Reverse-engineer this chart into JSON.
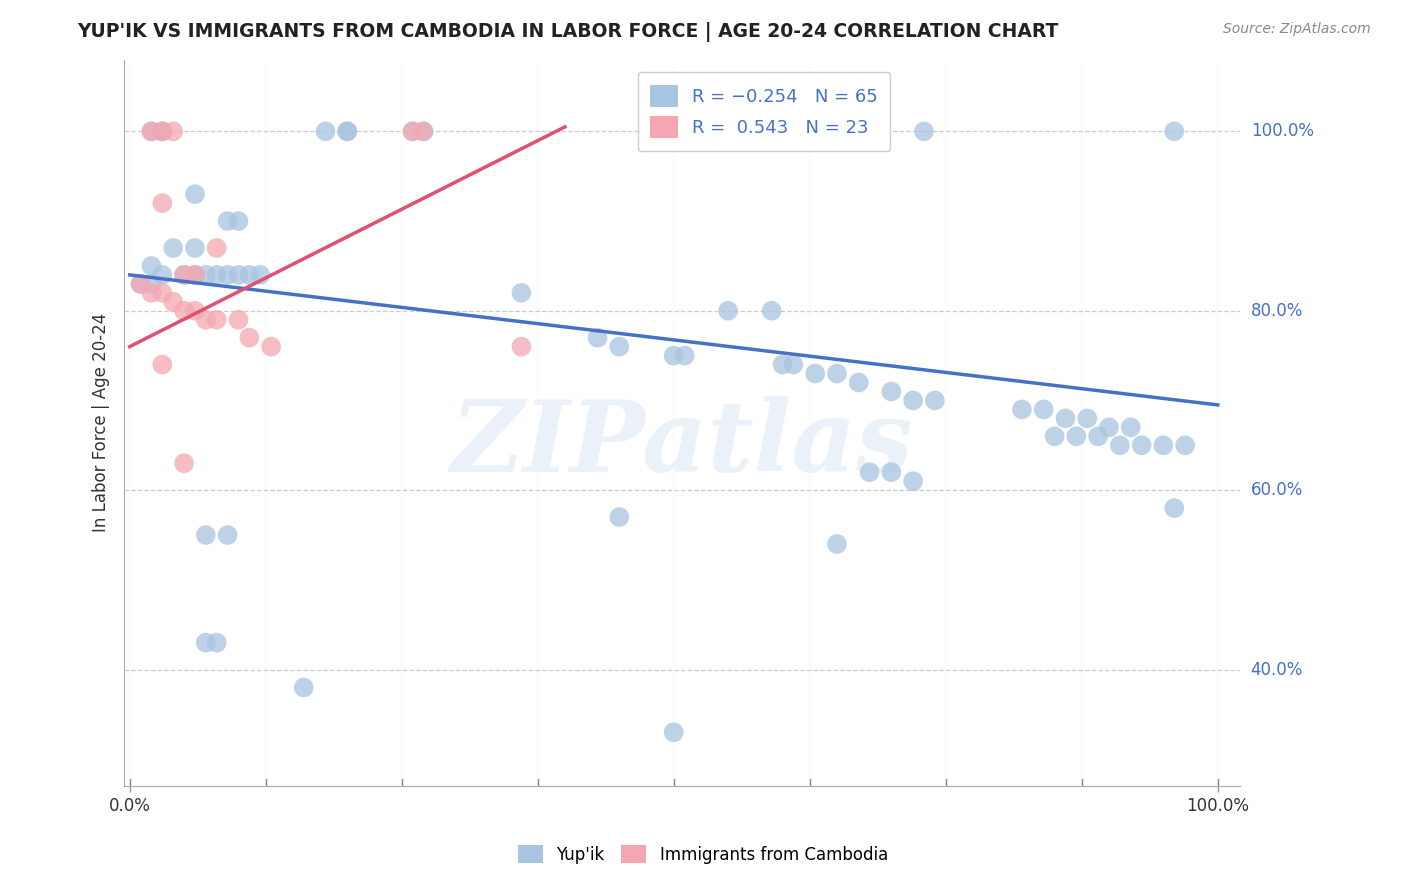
{
  "title": "YUP'IK VS IMMIGRANTS FROM CAMBODIA IN LABOR FORCE | AGE 20-24 CORRELATION CHART",
  "source": "Source: ZipAtlas.com",
  "ylabel": "In Labor Force | Age 20-24",
  "color_blue": "#a8c4e0",
  "color_pink": "#f4a7b0",
  "line_blue": "#4472c4",
  "line_pink": "#e05070",
  "watermark": "ZIPatlas",
  "blue_dots": [
    [
      0.02,
      1.0
    ],
    [
      0.03,
      1.0
    ],
    [
      0.03,
      1.0
    ],
    [
      0.18,
      1.0
    ],
    [
      0.2,
      1.0
    ],
    [
      0.2,
      1.0
    ],
    [
      0.26,
      1.0
    ],
    [
      0.27,
      1.0
    ],
    [
      0.73,
      1.0
    ],
    [
      0.96,
      1.0
    ],
    [
      0.06,
      0.93
    ],
    [
      0.09,
      0.9
    ],
    [
      0.1,
      0.9
    ],
    [
      0.04,
      0.87
    ],
    [
      0.06,
      0.87
    ],
    [
      0.02,
      0.85
    ],
    [
      0.03,
      0.84
    ],
    [
      0.05,
      0.84
    ],
    [
      0.06,
      0.84
    ],
    [
      0.07,
      0.84
    ],
    [
      0.08,
      0.84
    ],
    [
      0.09,
      0.84
    ],
    [
      0.1,
      0.84
    ],
    [
      0.11,
      0.84
    ],
    [
      0.12,
      0.84
    ],
    [
      0.01,
      0.83
    ],
    [
      0.02,
      0.83
    ],
    [
      0.36,
      0.82
    ],
    [
      0.55,
      0.8
    ],
    [
      0.59,
      0.8
    ],
    [
      0.43,
      0.77
    ],
    [
      0.45,
      0.76
    ],
    [
      0.5,
      0.75
    ],
    [
      0.51,
      0.75
    ],
    [
      0.6,
      0.74
    ],
    [
      0.61,
      0.74
    ],
    [
      0.63,
      0.73
    ],
    [
      0.65,
      0.73
    ],
    [
      0.67,
      0.72
    ],
    [
      0.7,
      0.71
    ],
    [
      0.72,
      0.7
    ],
    [
      0.74,
      0.7
    ],
    [
      0.82,
      0.69
    ],
    [
      0.84,
      0.69
    ],
    [
      0.86,
      0.68
    ],
    [
      0.88,
      0.68
    ],
    [
      0.9,
      0.67
    ],
    [
      0.92,
      0.67
    ],
    [
      0.85,
      0.66
    ],
    [
      0.87,
      0.66
    ],
    [
      0.89,
      0.66
    ],
    [
      0.91,
      0.65
    ],
    [
      0.93,
      0.65
    ],
    [
      0.95,
      0.65
    ],
    [
      0.97,
      0.65
    ],
    [
      0.68,
      0.62
    ],
    [
      0.7,
      0.62
    ],
    [
      0.72,
      0.61
    ],
    [
      0.96,
      0.58
    ],
    [
      0.45,
      0.57
    ],
    [
      0.07,
      0.55
    ],
    [
      0.09,
      0.55
    ],
    [
      0.65,
      0.54
    ],
    [
      0.07,
      0.43
    ],
    [
      0.08,
      0.43
    ],
    [
      0.16,
      0.38
    ],
    [
      0.5,
      0.33
    ]
  ],
  "pink_dots": [
    [
      0.02,
      1.0
    ],
    [
      0.03,
      1.0
    ],
    [
      0.04,
      1.0
    ],
    [
      0.26,
      1.0
    ],
    [
      0.27,
      1.0
    ],
    [
      0.03,
      0.92
    ],
    [
      0.08,
      0.87
    ],
    [
      0.05,
      0.84
    ],
    [
      0.06,
      0.84
    ],
    [
      0.01,
      0.83
    ],
    [
      0.02,
      0.82
    ],
    [
      0.03,
      0.82
    ],
    [
      0.04,
      0.81
    ],
    [
      0.05,
      0.8
    ],
    [
      0.06,
      0.8
    ],
    [
      0.07,
      0.79
    ],
    [
      0.08,
      0.79
    ],
    [
      0.1,
      0.79
    ],
    [
      0.11,
      0.77
    ],
    [
      0.13,
      0.76
    ],
    [
      0.36,
      0.76
    ],
    [
      0.03,
      0.74
    ],
    [
      0.05,
      0.63
    ]
  ],
  "blue_line_x": [
    0.0,
    1.0
  ],
  "blue_line_y": [
    0.84,
    0.695
  ],
  "pink_line_x": [
    0.0,
    0.4
  ],
  "pink_line_y": [
    0.76,
    1.005
  ],
  "ytick_vals": [
    0.4,
    0.6,
    0.8,
    1.0
  ],
  "ytick_labels": [
    "40.0%",
    "60.0%",
    "80.0%",
    "100.0%"
  ],
  "xtick_vals": [
    0.0,
    1.0
  ],
  "xtick_labels": [
    "0.0%",
    "100.0%"
  ]
}
